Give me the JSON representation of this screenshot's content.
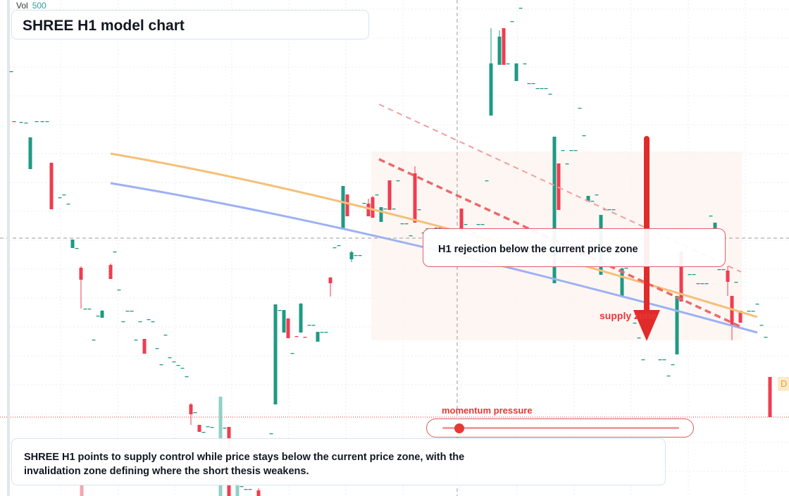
{
  "header": {
    "vol_label": "Vol",
    "vol_value": "500",
    "title": "SHREE H1 model chart"
  },
  "annotations": {
    "callout_text": "H1 rejection below the current price zone",
    "supply_label": "supply zone",
    "momentum_label": "momentum pressure",
    "momentum_level": 0.07,
    "badge_text": "D"
  },
  "summary": {
    "text": "SHREE H1 points to supply control while price stays below the current price zone, with the invalidation zone defining where the short thesis weakens."
  },
  "colors": {
    "bull": "#1e9a84",
    "bear": "#ef3d4f",
    "accent_red": "#e53935",
    "ma_orange": "#f5c078",
    "ma_blue": "#9db1f2",
    "zone_fill": "#fdf2ee"
  },
  "icons": {
    "arrow": "arrow-down-icon"
  },
  "chart_data": {
    "type": "candlestick",
    "ohlc": [
      {
        "o": 0.7,
        "h": 0.71,
        "l": 0.7,
        "c": 0.71
      },
      {
        "o": 0.74,
        "h": 0.74,
        "l": 0.73,
        "c": 0.74
      },
      {
        "o": 0.7,
        "h": 0.7,
        "l": 0.7,
        "c": 0.7
      },
      {
        "o": 0.66,
        "h": 0.66,
        "l": 0.66,
        "c": 0.66
      },
      {
        "o": 0.65,
        "h": 0.65,
        "l": 0.65,
        "c": 0.65
      },
      {
        "o": 0.63,
        "h": 0.63,
        "l": 0.63,
        "c": 0.63
      }
    ]
  }
}
